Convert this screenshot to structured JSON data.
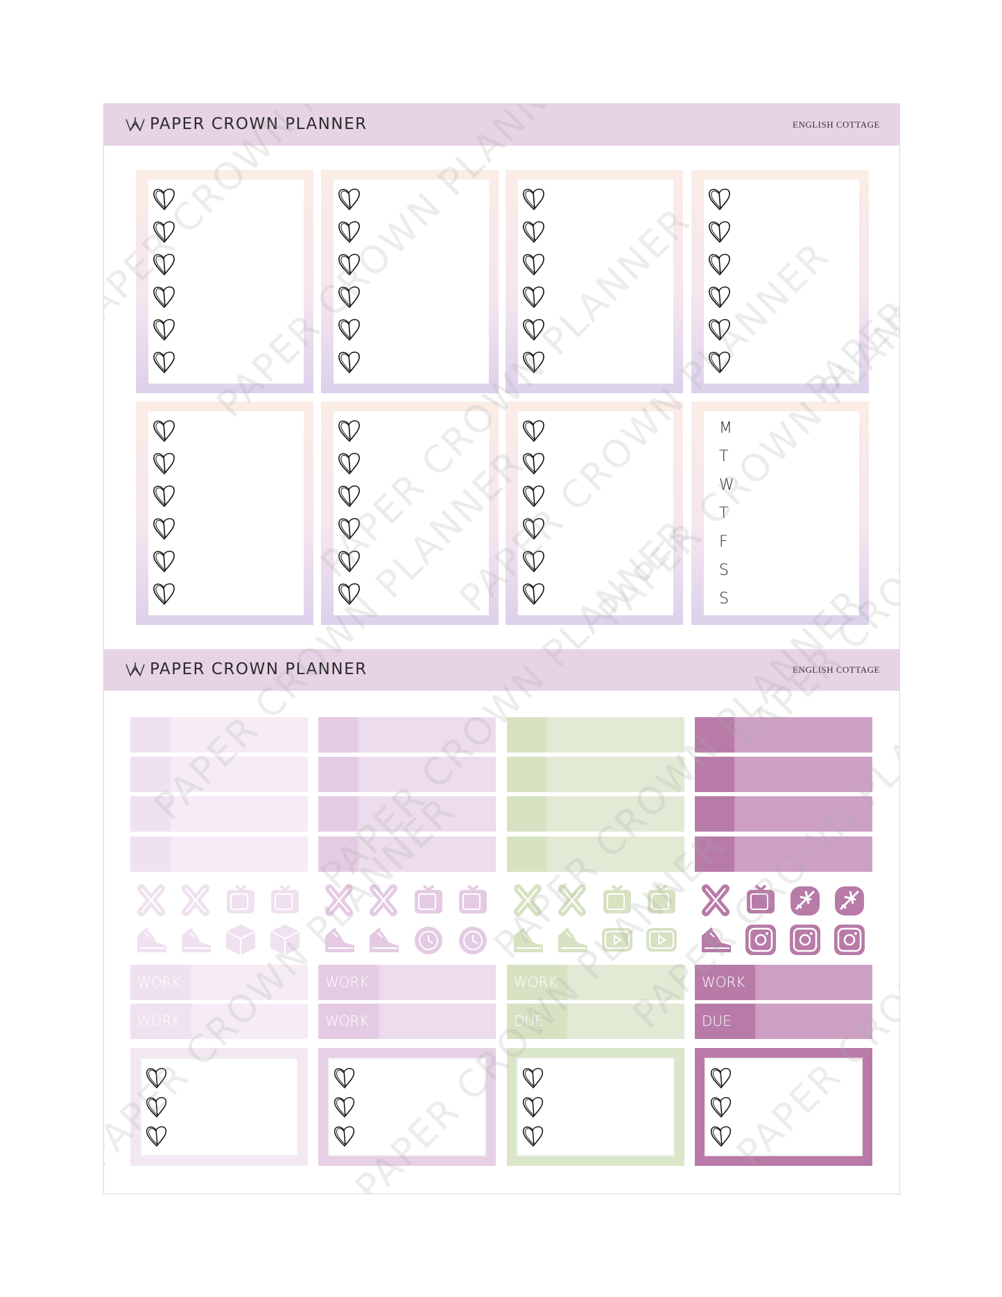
{
  "header": {
    "brand": "PAPER CROWN PLANNER",
    "collection": "ENGLISH COTTAGE",
    "accent": "#e7d3e6"
  },
  "weekday_box": {
    "days": [
      "M",
      "T",
      "W",
      "T",
      "F",
      "S",
      "S"
    ]
  },
  "hearts_per_box": 6,
  "strip_colors": [
    {
      "tab": "#efe1ef",
      "rest": "#f5ecf5"
    },
    {
      "tab": "#e4cbe3",
      "rest": "#ecdcec"
    },
    {
      "tab": "#d6e2c2",
      "rest": "#e2ead5"
    },
    {
      "tab": "#b87ba8",
      "rest": "#cda0c4"
    }
  ],
  "icons": [
    [
      "fork-knife",
      "fork-knife",
      "tv",
      "tv",
      "sneaker",
      "sneaker",
      "box",
      "box"
    ],
    [
      "fork-knife",
      "fork-knife",
      "tv",
      "tv",
      "sneaker",
      "sneaker",
      "alarm-clock",
      "alarm-clock"
    ],
    [
      "fork-knife",
      "fork-knife",
      "tv",
      "tv",
      "sneaker",
      "sneaker",
      "play",
      "play"
    ],
    [
      "fork-knife",
      "tv",
      "airplane",
      "airplane",
      "sneaker",
      "instagram",
      "instagram",
      "instagram"
    ]
  ],
  "label_strips": [
    [
      "WORK",
      "WORK"
    ],
    [
      "WORK",
      "WORK"
    ],
    [
      "WORK",
      "DUE"
    ],
    [
      "WORK",
      "DUE"
    ]
  ],
  "box_colors": [
    "#f3e8f2",
    "#e6d0e5",
    "#dae6c8",
    "#b97aa8"
  ],
  "watermark": "PAPER CROWN PLANNER"
}
